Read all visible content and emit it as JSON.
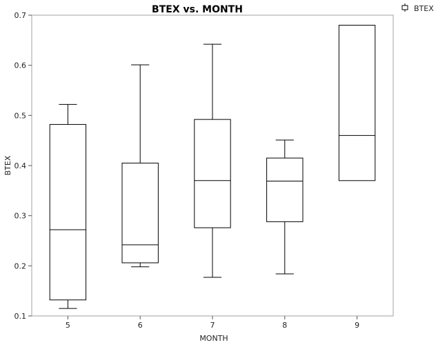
{
  "chart_data": {
    "type": "box",
    "title": "BTEX vs. MONTH",
    "xlabel": "MONTH",
    "ylabel": "BTEX",
    "ylim": [
      0.1,
      0.7
    ],
    "yticks": [
      "0.1",
      "0.2",
      "0.3",
      "0.4",
      "0.5",
      "0.6",
      "0.7"
    ],
    "categories": [
      "5",
      "6",
      "7",
      "8",
      "9"
    ],
    "legend": {
      "label": "BTEX",
      "position": "top-right"
    },
    "series": [
      {
        "boxes": [
          {
            "category": "5",
            "min": 0.115,
            "q1": 0.132,
            "median": 0.272,
            "q3": 0.482,
            "max": 0.522
          },
          {
            "category": "6",
            "min": 0.198,
            "q1": 0.206,
            "median": 0.242,
            "q3": 0.405,
            "max": 0.601
          },
          {
            "category": "7",
            "min": 0.177,
            "q1": 0.276,
            "median": 0.37,
            "q3": 0.492,
            "max": 0.642
          },
          {
            "category": "8",
            "min": 0.184,
            "q1": 0.288,
            "median": 0.369,
            "q3": 0.415,
            "max": 0.451
          },
          {
            "category": "9",
            "min": 0.37,
            "q1": 0.37,
            "median": 0.46,
            "q3": 0.68,
            "max": 0.68
          }
        ]
      }
    ],
    "colors": {
      "stroke": "#000000",
      "frame": "#a0a0a0"
    }
  }
}
